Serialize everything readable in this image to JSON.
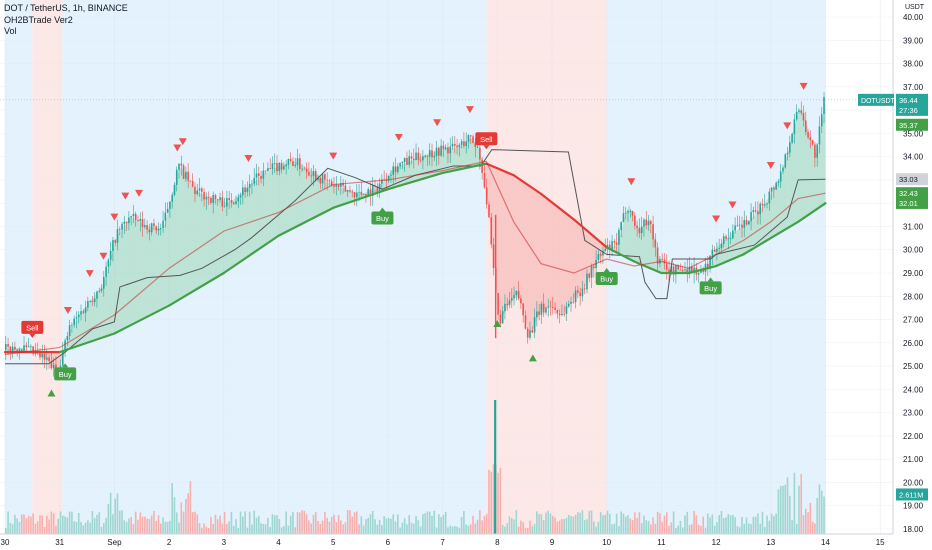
{
  "legend": {
    "title": "DOT / TetherUS, 1h, BINANCE",
    "indicator": "OH2BTrade Ver2",
    "volume": "Vol"
  },
  "currency": "USDT",
  "badges": {
    "symbol": "DOTUSDT",
    "price": "36.44",
    "countdown": "27:36",
    "green_top": "35.37",
    "dark": "33.03",
    "green_mid": "32.43",
    "green_low": "32.01",
    "volume": "2.611M"
  },
  "colors": {
    "up": "#26a69a",
    "down": "#ef5350",
    "buy": "#43a047",
    "sell": "#e53935",
    "ma_green": "#43a047",
    "ma_red": "#e53935",
    "stop_line": "#555555",
    "bg_blue": "#e3f2fd",
    "bg_red": "#fde8e8"
  },
  "chart_data": {
    "type": "candlestick",
    "y_axis_range": [
      18,
      40
    ],
    "y_ticks": [
      "40.00",
      "39.00",
      "38.00",
      "37.00",
      "36.00",
      "35.00",
      "34.00",
      "33.00",
      "32.00",
      "31.00",
      "30.00",
      "29.00",
      "28.00",
      "27.00",
      "26.00",
      "25.00",
      "24.00",
      "23.00",
      "22.00",
      "21.00",
      "20.00",
      "19.00",
      "18.00"
    ],
    "x_ticks": [
      "30",
      "31",
      "Sep",
      "2",
      "3",
      "4",
      "5",
      "6",
      "7",
      "8",
      "9",
      "10",
      "11",
      "12",
      "13",
      "14",
      "15"
    ],
    "x_range_days": [
      0,
      16.5
    ],
    "regimes": [
      {
        "from": 0,
        "to": 0.5,
        "state": "bull"
      },
      {
        "from": 0.5,
        "to": 1.05,
        "state": "bear"
      },
      {
        "from": 1.05,
        "to": 8.8,
        "state": "bull"
      },
      {
        "from": 8.8,
        "to": 11.0,
        "state": "bear"
      },
      {
        "from": 11.0,
        "to": 15.0,
        "state": "bull"
      }
    ],
    "signals": [
      {
        "type": "sell",
        "x": 0.5,
        "y": 26.0,
        "label": "Sell"
      },
      {
        "type": "buy",
        "x": 1.1,
        "y": 25.2,
        "label": "Buy"
      },
      {
        "type": "buy",
        "x": 6.9,
        "y": 31.9,
        "label": "Buy"
      },
      {
        "type": "sell",
        "x": 8.8,
        "y": 34.1,
        "label": "Sell"
      },
      {
        "type": "buy",
        "x": 11.0,
        "y": 29.3,
        "label": "Buy"
      },
      {
        "type": "buy",
        "x": 12.9,
        "y": 28.9,
        "label": "Buy"
      }
    ],
    "price_path": [
      [
        0.0,
        25.7
      ],
      [
        0.3,
        25.8
      ],
      [
        0.6,
        25.5
      ],
      [
        0.8,
        25.2
      ],
      [
        0.95,
        24.8
      ],
      [
        1.05,
        25.3
      ],
      [
        1.2,
        26.6
      ],
      [
        1.5,
        27.6
      ],
      [
        1.8,
        28.5
      ],
      [
        2.05,
        30.6
      ],
      [
        2.3,
        31.4
      ],
      [
        2.6,
        31.0
      ],
      [
        2.9,
        30.9
      ],
      [
        3.2,
        33.6
      ],
      [
        3.5,
        32.5
      ],
      [
        3.8,
        32.2
      ],
      [
        4.1,
        32.0
      ],
      [
        4.4,
        32.6
      ],
      [
        4.7,
        33.2
      ],
      [
        5.0,
        33.6
      ],
      [
        5.3,
        33.8
      ],
      [
        5.6,
        33.4
      ],
      [
        5.9,
        32.9
      ],
      [
        6.2,
        32.6
      ],
      [
        6.5,
        32.4
      ],
      [
        6.8,
        32.6
      ],
      [
        7.1,
        33.5
      ],
      [
        7.4,
        33.8
      ],
      [
        7.7,
        34.1
      ],
      [
        8.0,
        34.3
      ],
      [
        8.3,
        34.4
      ],
      [
        8.5,
        34.8
      ],
      [
        8.65,
        34.5
      ],
      [
        8.75,
        33.5
      ],
      [
        8.85,
        31.8
      ],
      [
        8.95,
        29.2
      ],
      [
        9.05,
        26.9
      ],
      [
        9.2,
        27.6
      ],
      [
        9.4,
        28.1
      ],
      [
        9.6,
        26.3
      ],
      [
        9.8,
        27.4
      ],
      [
        10.0,
        27.6
      ],
      [
        10.2,
        27.2
      ],
      [
        10.4,
        27.9
      ],
      [
        10.6,
        28.4
      ],
      [
        10.8,
        29.4
      ],
      [
        11.0,
        30.0
      ],
      [
        11.2,
        30.2
      ],
      [
        11.4,
        32.0
      ],
      [
        11.6,
        30.8
      ],
      [
        11.8,
        31.4
      ],
      [
        11.95,
        29.6
      ],
      [
        12.2,
        29.1
      ],
      [
        12.5,
        29.2
      ],
      [
        12.8,
        29.0
      ],
      [
        13.0,
        30.1
      ],
      [
        13.3,
        30.7
      ],
      [
        13.6,
        31.2
      ],
      [
        13.9,
        32.0
      ],
      [
        14.2,
        33.2
      ],
      [
        14.4,
        35.0
      ],
      [
        14.55,
        36.2
      ],
      [
        14.7,
        35.0
      ],
      [
        14.85,
        34.0
      ],
      [
        15.0,
        36.4
      ]
    ],
    "ma_path": [
      [
        0.0,
        25.6
      ],
      [
        1.0,
        25.6
      ],
      [
        2.0,
        26.4
      ],
      [
        3.0,
        27.6
      ],
      [
        4.0,
        29.0
      ],
      [
        5.0,
        30.6
      ],
      [
        6.0,
        31.8
      ],
      [
        7.0,
        32.6
      ],
      [
        8.0,
        33.3
      ],
      [
        8.8,
        33.7
      ],
      [
        9.3,
        33.2
      ],
      [
        9.8,
        32.4
      ],
      [
        10.4,
        31.3
      ],
      [
        11.0,
        30.1
      ],
      [
        11.5,
        29.5
      ],
      [
        12.0,
        29.0
      ],
      [
        12.5,
        29.0
      ],
      [
        13.0,
        29.3
      ],
      [
        13.5,
        29.8
      ],
      [
        14.0,
        30.5
      ],
      [
        14.5,
        31.2
      ],
      [
        15.0,
        32.0
      ]
    ],
    "stop_path": [
      [
        0.0,
        25.1
      ],
      [
        0.8,
        25.1
      ],
      [
        1.1,
        25.6
      ],
      [
        1.6,
        26.6
      ],
      [
        2.0,
        26.9
      ],
      [
        2.1,
        28.4
      ],
      [
        2.6,
        28.8
      ],
      [
        3.2,
        28.9
      ],
      [
        3.6,
        29.2
      ],
      [
        4.2,
        30.0
      ],
      [
        4.5,
        30.5
      ],
      [
        5.3,
        32.1
      ],
      [
        5.9,
        33.5
      ],
      [
        6.4,
        33.1
      ],
      [
        6.9,
        32.6
      ],
      [
        7.5,
        33.2
      ],
      [
        8.2,
        33.6
      ],
      [
        8.7,
        33.6
      ],
      [
        8.9,
        34.3
      ],
      [
        10.3,
        34.2
      ],
      [
        10.6,
        30.4
      ],
      [
        11.0,
        29.8
      ],
      [
        11.6,
        29.7
      ],
      [
        11.7,
        28.6
      ],
      [
        11.9,
        27.9
      ],
      [
        12.1,
        27.9
      ],
      [
        12.2,
        29.6
      ],
      [
        12.9,
        29.6
      ],
      [
        13.0,
        29.8
      ],
      [
        13.7,
        30.2
      ],
      [
        14.0,
        30.8
      ],
      [
        14.3,
        31.4
      ],
      [
        14.5,
        33.0
      ],
      [
        15.0,
        33.03
      ]
    ],
    "ma_fast_path": [
      [
        0.0,
        25.5
      ],
      [
        1.0,
        25.8
      ],
      [
        2.0,
        27.2
      ],
      [
        3.0,
        29.2
      ],
      [
        4.0,
        30.8
      ],
      [
        5.0,
        31.6
      ],
      [
        6.0,
        32.8
      ],
      [
        7.0,
        33.0
      ],
      [
        8.0,
        33.4
      ],
      [
        8.8,
        33.8
      ],
      [
        9.3,
        31.2
      ],
      [
        9.8,
        29.4
      ],
      [
        10.4,
        29.0
      ],
      [
        11.0,
        29.6
      ],
      [
        11.5,
        29.3
      ],
      [
        12.0,
        29.5
      ],
      [
        12.5,
        29.2
      ],
      [
        13.0,
        29.8
      ],
      [
        13.5,
        30.4
      ],
      [
        14.0,
        31.2
      ],
      [
        14.5,
        32.2
      ],
      [
        15.0,
        32.43
      ]
    ],
    "volume_scale_max": 20
  }
}
